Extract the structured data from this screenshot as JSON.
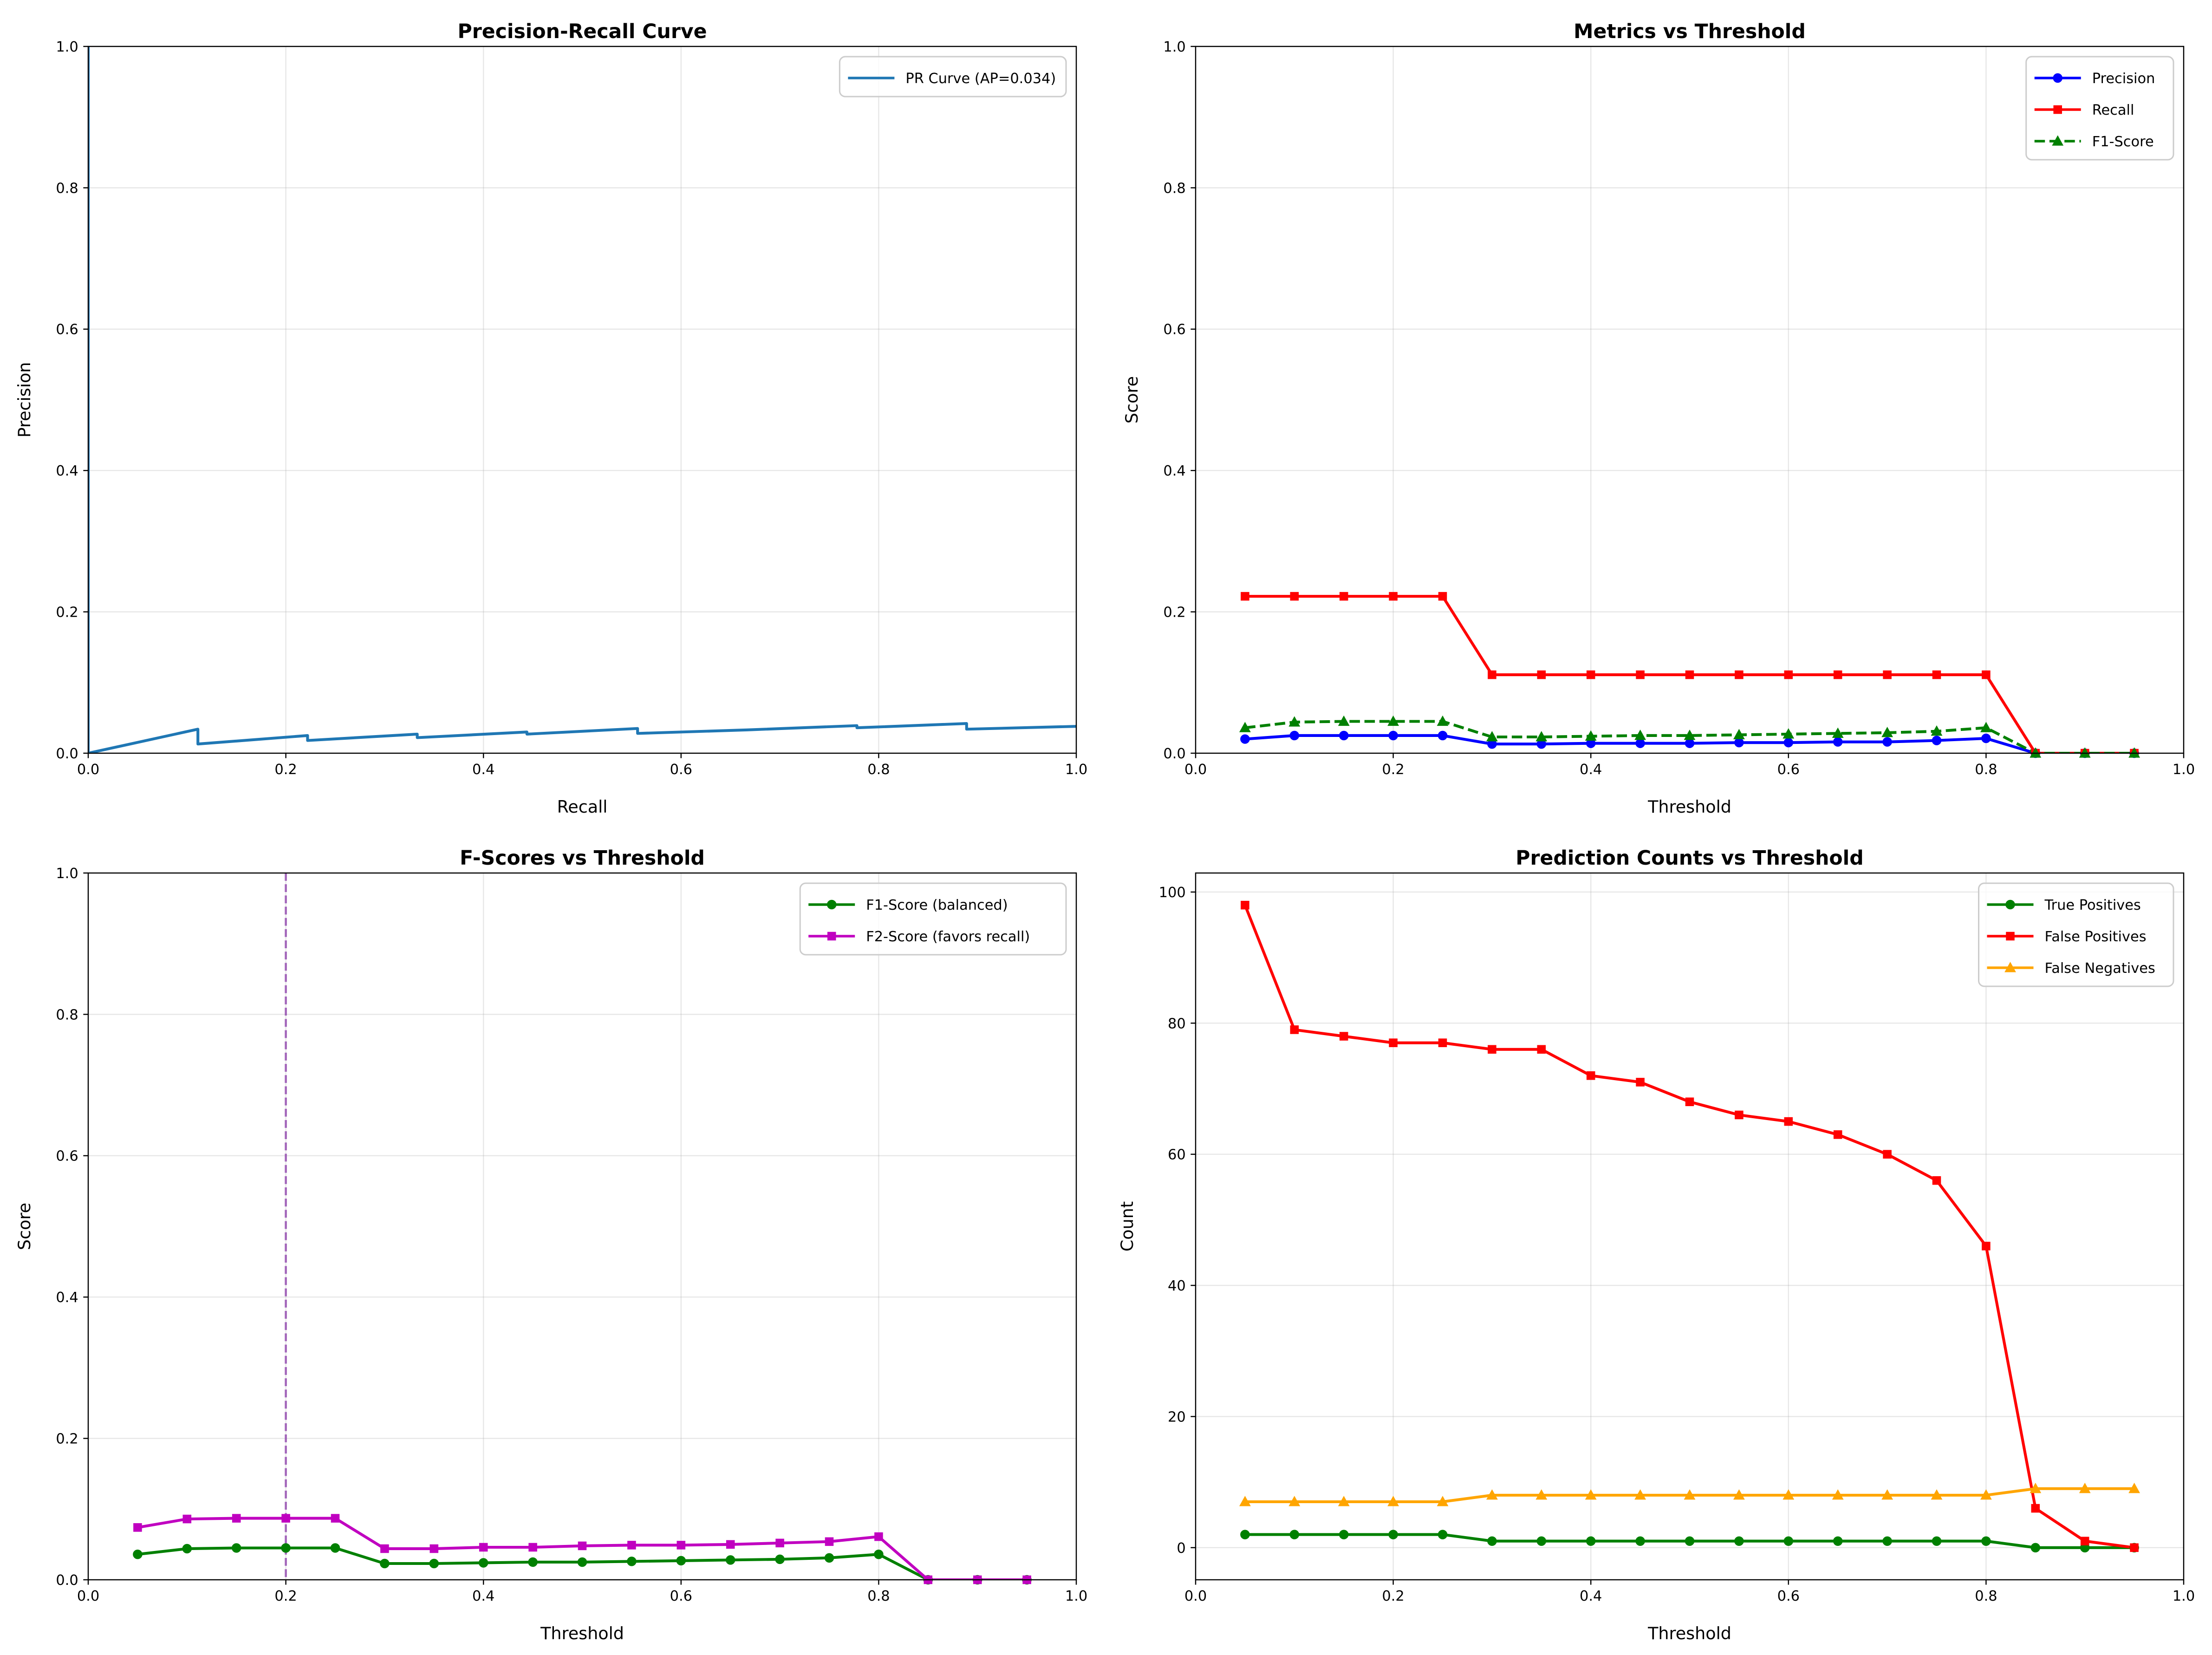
{
  "chart_data": [
    {
      "type": "line",
      "title": "Precision-Recall Curve",
      "xlabel": "Recall",
      "ylabel": "Precision",
      "xlim": [
        0,
        1
      ],
      "ylim": [
        0,
        1
      ],
      "xticks": [
        "0.0",
        "0.2",
        "0.4",
        "0.6",
        "0.8",
        "1.0"
      ],
      "yticks": [
        "0.0",
        "0.2",
        "0.4",
        "0.6",
        "0.8",
        "1.0"
      ],
      "grid": true,
      "legend": "top-right",
      "series": [
        {
          "name": "PR Curve (AP=0.034)",
          "color": "#1f77b4",
          "style": "solid",
          "marker": "none",
          "x": [
            0,
            0,
            0,
            0.111,
            0.111,
            0.222,
            0.222,
            0.333,
            0.333,
            0.444,
            0.444,
            0.556,
            0.556,
            0.667,
            0.778,
            0.778,
            0.889,
            0.889,
            1.0
          ],
          "y": [
            1.0,
            0.5,
            0,
            0.034,
            0.013,
            0.025,
            0.018,
            0.027,
            0.022,
            0.03,
            0.027,
            0.035,
            0.028,
            0.033,
            0.039,
            0.036,
            0.042,
            0.034,
            0.038
          ]
        }
      ]
    },
    {
      "type": "line",
      "title": "Metrics vs Threshold",
      "xlabel": "Threshold",
      "ylabel": "Score",
      "xlim": [
        0,
        1
      ],
      "ylim": [
        0,
        1
      ],
      "xticks": [
        "0.0",
        "0.2",
        "0.4",
        "0.6",
        "0.8",
        "1.0"
      ],
      "yticks": [
        "0.0",
        "0.2",
        "0.4",
        "0.6",
        "0.8",
        "1.0"
      ],
      "grid": true,
      "legend": "top-right",
      "x": [
        0.05,
        0.1,
        0.15,
        0.2,
        0.25,
        0.3,
        0.35,
        0.4,
        0.45,
        0.5,
        0.55,
        0.6,
        0.65,
        0.7,
        0.75,
        0.8,
        0.85,
        0.9,
        0.95
      ],
      "series": [
        {
          "name": "Precision",
          "color": "#0000ff",
          "style": "solid",
          "marker": "circle",
          "values": [
            0.02,
            0.025,
            0.025,
            0.025,
            0.025,
            0.013,
            0.013,
            0.014,
            0.014,
            0.014,
            0.015,
            0.015,
            0.016,
            0.016,
            0.018,
            0.021,
            0,
            0,
            0
          ]
        },
        {
          "name": "Recall",
          "color": "#ff0000",
          "style": "solid",
          "marker": "square",
          "values": [
            0.222,
            0.222,
            0.222,
            0.222,
            0.222,
            0.111,
            0.111,
            0.111,
            0.111,
            0.111,
            0.111,
            0.111,
            0.111,
            0.111,
            0.111,
            0.111,
            0,
            0,
            0
          ]
        },
        {
          "name": "F1-Score",
          "color": "#008000",
          "style": "dashed",
          "marker": "triangle",
          "values": [
            0.036,
            0.044,
            0.045,
            0.045,
            0.045,
            0.023,
            0.023,
            0.024,
            0.025,
            0.025,
            0.026,
            0.027,
            0.028,
            0.029,
            0.031,
            0.036,
            0,
            0,
            0
          ]
        }
      ]
    },
    {
      "type": "line",
      "title": "F-Scores vs Threshold",
      "xlabel": "Threshold",
      "ylabel": "Score",
      "xlim": [
        0,
        1
      ],
      "ylim": [
        0,
        1
      ],
      "xticks": [
        "0.0",
        "0.2",
        "0.4",
        "0.6",
        "0.8",
        "1.0"
      ],
      "yticks": [
        "0.0",
        "0.2",
        "0.4",
        "0.6",
        "0.8",
        "1.0"
      ],
      "grid": true,
      "legend": "top-right",
      "vline": {
        "x": 0.2,
        "color": "#8e44ad",
        "style": "dashed"
      },
      "x": [
        0.05,
        0.1,
        0.15,
        0.2,
        0.25,
        0.3,
        0.35,
        0.4,
        0.45,
        0.5,
        0.55,
        0.6,
        0.65,
        0.7,
        0.75,
        0.8,
        0.85,
        0.9,
        0.95
      ],
      "series": [
        {
          "name": "F1-Score (balanced)",
          "color": "#008000",
          "style": "solid",
          "marker": "circle",
          "values": [
            0.036,
            0.044,
            0.045,
            0.045,
            0.045,
            0.023,
            0.023,
            0.024,
            0.025,
            0.025,
            0.026,
            0.027,
            0.028,
            0.029,
            0.031,
            0.036,
            0,
            0,
            0
          ]
        },
        {
          "name": "F2-Score (favors recall)",
          "color": "#c000c0",
          "style": "solid",
          "marker": "square",
          "values": [
            0.074,
            0.086,
            0.087,
            0.087,
            0.087,
            0.044,
            0.044,
            0.046,
            0.046,
            0.048,
            0.049,
            0.049,
            0.05,
            0.052,
            0.054,
            0.061,
            0,
            0,
            0
          ]
        }
      ]
    },
    {
      "type": "line",
      "title": "Prediction Counts vs Threshold",
      "xlabel": "Threshold",
      "ylabel": "Count",
      "xlim": [
        0,
        1
      ],
      "ylim": [
        -4.9,
        102.9
      ],
      "xticks": [
        "0.0",
        "0.2",
        "0.4",
        "0.6",
        "0.8",
        "1.0"
      ],
      "yticks": [
        "0",
        "20",
        "40",
        "60",
        "80",
        "100"
      ],
      "grid": true,
      "legend": "top-right",
      "x": [
        0.05,
        0.1,
        0.15,
        0.2,
        0.25,
        0.3,
        0.35,
        0.4,
        0.45,
        0.5,
        0.55,
        0.6,
        0.65,
        0.7,
        0.75,
        0.8,
        0.85,
        0.9,
        0.95
      ],
      "series": [
        {
          "name": "True Positives",
          "color": "#008000",
          "style": "solid",
          "marker": "circle",
          "values": [
            2,
            2,
            2,
            2,
            2,
            1,
            1,
            1,
            1,
            1,
            1,
            1,
            1,
            1,
            1,
            1,
            0,
            0,
            0
          ]
        },
        {
          "name": "False Positives",
          "color": "#ff0000",
          "style": "solid",
          "marker": "square",
          "values": [
            98,
            79,
            78,
            77,
            77,
            76,
            76,
            72,
            71,
            68,
            66,
            65,
            63,
            60,
            56,
            46,
            6,
            1,
            0
          ]
        },
        {
          "name": "False Negatives",
          "color": "#ffa500",
          "style": "solid",
          "marker": "triangle",
          "values": [
            7,
            7,
            7,
            7,
            7,
            8,
            8,
            8,
            8,
            8,
            8,
            8,
            8,
            8,
            8,
            8,
            9,
            9,
            9
          ]
        }
      ]
    }
  ]
}
